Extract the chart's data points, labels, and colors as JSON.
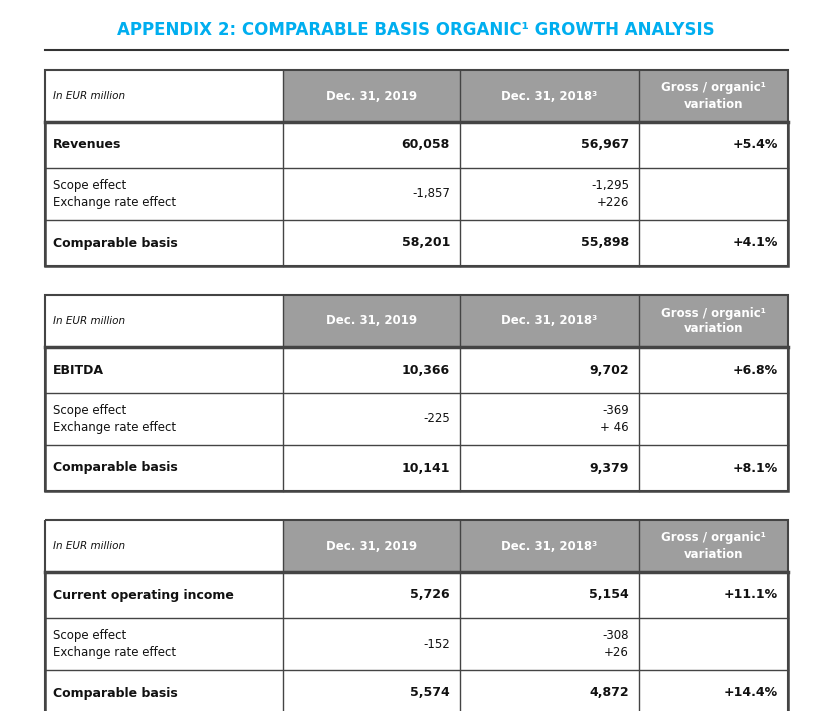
{
  "title": "APPENDIX 2: COMPARABLE BASIS ORGANIC¹ GROWTH ANALYSIS",
  "title_color": "#00AEEF",
  "background_color": "#FFFFFF",
  "tables": [
    {
      "label": "In EUR million",
      "col_headers": [
        "Dec. 31, 2019",
        "Dec. 31, 2018³",
        "Gross / organic¹\nvariation"
      ],
      "rows": [
        {
          "label": "Revenues",
          "bold": true,
          "col1": "60,058",
          "col2": "56,967",
          "col3": "+5.4%"
        },
        {
          "label": "Scope effect\nExchange rate effect",
          "bold": false,
          "col1": "-1,857",
          "col2": "-1,295\n+226",
          "col3": ""
        },
        {
          "label": "Comparable basis",
          "bold": true,
          "col1": "58,201",
          "col2": "55,898",
          "col3": "+4.1%"
        }
      ]
    },
    {
      "label": "In EUR million",
      "col_headers": [
        "Dec. 31, 2019",
        "Dec. 31, 2018³",
        "Gross / organic¹\nvariation"
      ],
      "rows": [
        {
          "label": "EBITDA",
          "bold": true,
          "col1": "10,366",
          "col2": "9,702",
          "col3": "+6.8%"
        },
        {
          "label": "Scope effect\nExchange rate effect",
          "bold": false,
          "col1": "-225",
          "col2": "-369\n+ 46",
          "col3": ""
        },
        {
          "label": "Comparable basis",
          "bold": true,
          "col1": "10,141",
          "col2": "9,379",
          "col3": "+8.1%"
        }
      ]
    },
    {
      "label": "In EUR million",
      "col_headers": [
        "Dec. 31, 2019",
        "Dec. 31, 2018³",
        "Gross / organic¹\nvariation"
      ],
      "rows": [
        {
          "label": "Current operating income",
          "bold": true,
          "col1": "5,726",
          "col2": "5,154",
          "col3": "+11.1%"
        },
        {
          "label": "Scope effect\nExchange rate effect",
          "bold": false,
          "col1": "-152",
          "col2": "-308\n+26",
          "col3": ""
        },
        {
          "label": "Comparable basis",
          "bold": true,
          "col1": "5,574",
          "col2": "4,872",
          "col3": "+14.4%"
        }
      ]
    }
  ],
  "header_bg_color": "#9E9E9E",
  "border_color": "#444444",
  "text_color": "#111111"
}
